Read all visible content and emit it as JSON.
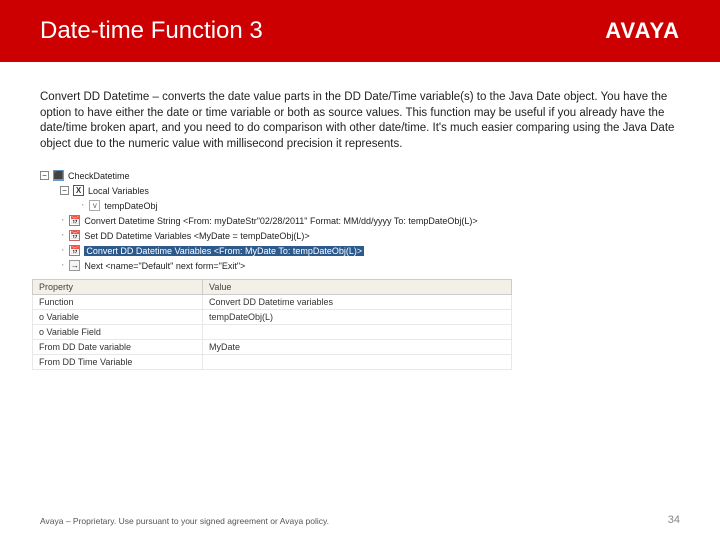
{
  "header": {
    "title": "Date-time Function 3",
    "logo_text": "AVAYA"
  },
  "body": {
    "paragraph": "Convert DD Datetime – converts the date value parts in the DD Date/Time variable(s) to the Java Date object. You have the option to have either the date or time variable or both as source values. This function may be useful if you already have the date/time broken apart, and you need to do comparison with other date/time. It's much easier comparing using the Java Date object due to the numeric value with millisecond precision it represents."
  },
  "tree": {
    "root": "CheckDatetime",
    "locals": "Local Variables",
    "var1": "tempDateObj",
    "fn1": "Convert Datetime String <From: myDateStr\"02/28/2011\" Format: MM/dd/yyyy To: tempDateObj(L)>",
    "fn2": "Set DD Datetime Variables <MyDate = tempDateObj(L)>",
    "fn3_selected": "Convert DD Datetime Variables <From: MyDate To: tempDateObj(L)>",
    "fn4": "Next <name=\"Default\" next form=\"Exit\">"
  },
  "properties": {
    "header_prop": "Property",
    "header_val": "Value",
    "rows": [
      {
        "prop": "Function",
        "val": "Convert DD Datetime variables"
      },
      {
        "prop": "o Variable",
        "val": "tempDateObj(L)"
      },
      {
        "prop": "o Variable Field",
        "val": ""
      },
      {
        "prop": "From DD Date variable",
        "val": "MyDate"
      },
      {
        "prop": "From DD Time Variable",
        "val": ""
      }
    ]
  },
  "footer": {
    "text": "Avaya – Proprietary. Use pursuant to your signed agreement or Avaya policy.",
    "page": "34"
  }
}
